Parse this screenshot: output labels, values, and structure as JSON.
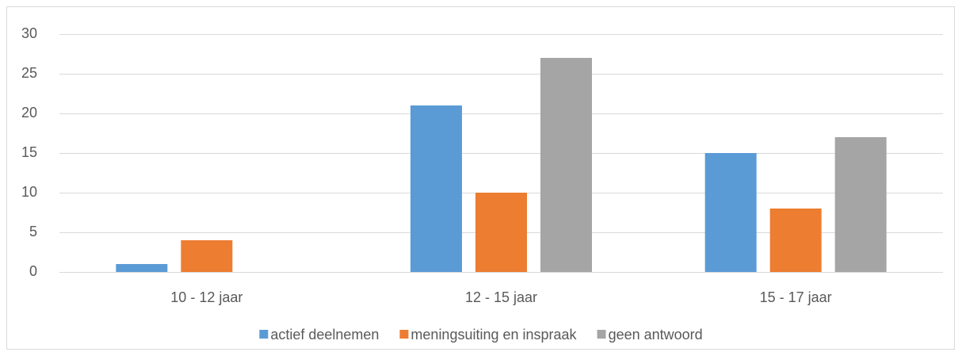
{
  "chart_data": {
    "type": "bar",
    "categories": [
      "10 - 12 jaar",
      "12 - 15 jaar",
      "15 - 17 jaar"
    ],
    "series": [
      {
        "name": "actief deelnemen",
        "color": "#5b9bd5",
        "values": [
          1,
          21,
          15
        ]
      },
      {
        "name": "meningsuiting en inspraak",
        "color": "#ed7d31",
        "values": [
          4,
          10,
          8
        ]
      },
      {
        "name": "geen antwoord",
        "color": "#a5a5a5",
        "values": [
          0,
          27,
          17
        ]
      }
    ],
    "ylim": [
      0,
      30
    ],
    "yticks": [
      0,
      5,
      10,
      15,
      20,
      25,
      30
    ],
    "grid": true,
    "legend": "bottom"
  }
}
